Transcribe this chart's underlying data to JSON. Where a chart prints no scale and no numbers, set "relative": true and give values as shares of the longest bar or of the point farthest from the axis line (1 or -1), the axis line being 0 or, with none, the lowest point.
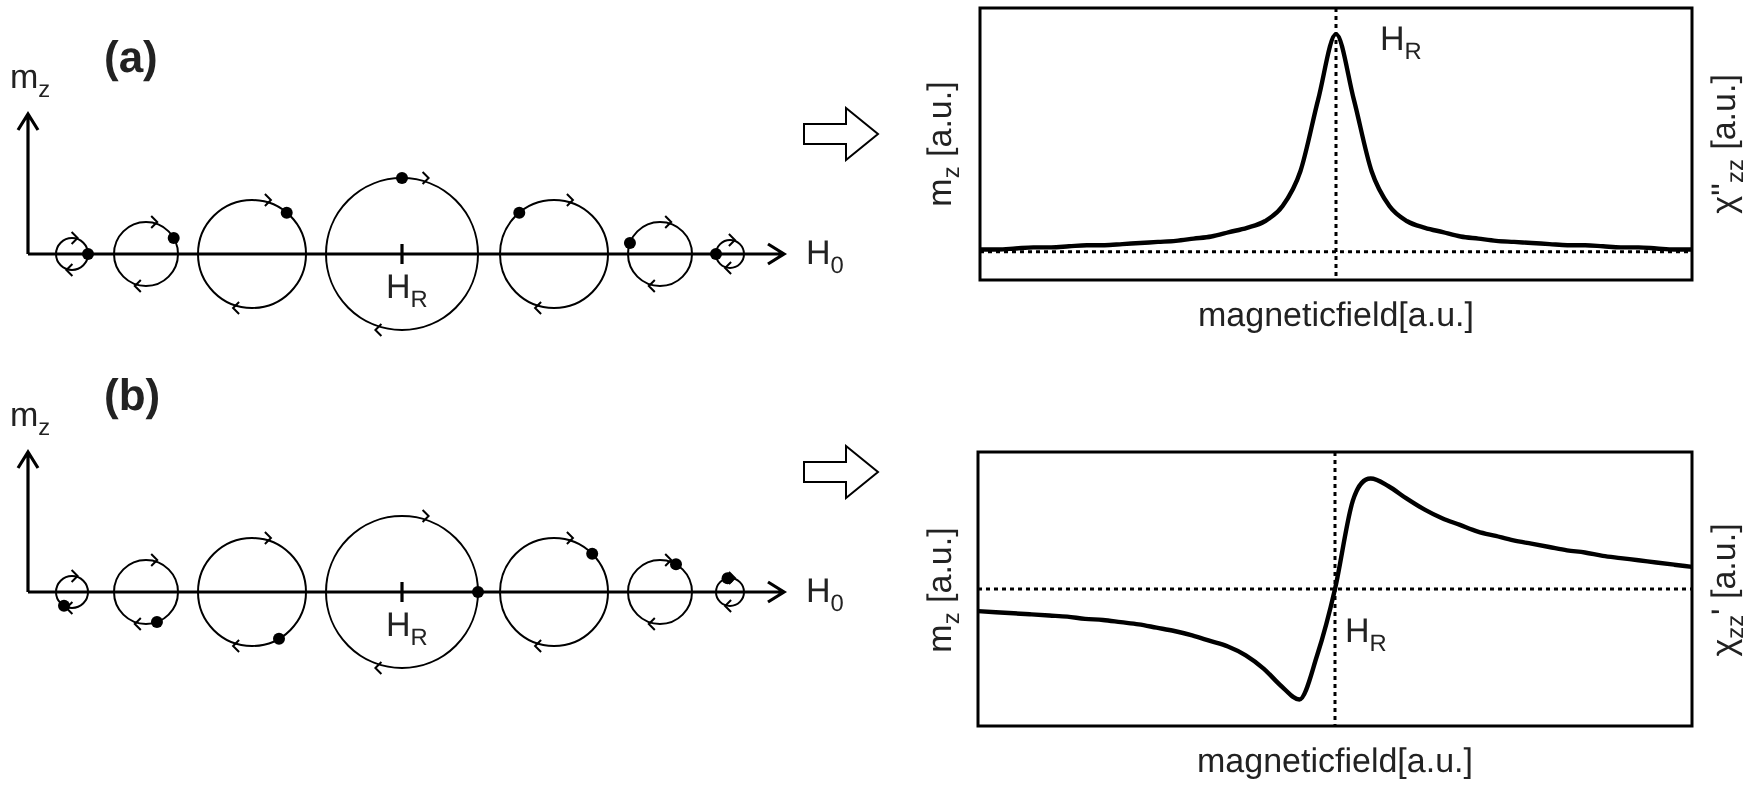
{
  "chart_data": [
    {
      "type": "line",
      "relative": true,
      "xlabel": "magneticfield[a.u.]",
      "ylabel": "m$_{z}$ [a.u.]",
      "y2label": "χ''$_{zz}$ [a.u.]",
      "categories": [
        null,
        null,
        null,
        null,
        null,
        null,
        null,
        null,
        null,
        null,
        null,
        null,
        null,
        null,
        null,
        null,
        null,
        null,
        null,
        null,
        null,
        null,
        null,
        null,
        null,
        null,
        null,
        null,
        null,
        null,
        null,
        null,
        null,
        null,
        null,
        null,
        null,
        null,
        null,
        null,
        null
      ],
      "series": [
        {
          "color": "#000000",
          "values": [
            0.01,
            0.01,
            0.015,
            0.02,
            0.02,
            0.025,
            0.03,
            0.03,
            0.035,
            0.04,
            0.045,
            0.05,
            0.06,
            0.07,
            0.09,
            0.11,
            0.14,
            0.21,
            0.37,
            0.7,
            1,
            0.7,
            0.37,
            0.21,
            0.14,
            0.11,
            0.09,
            0.07,
            0.06,
            0.05,
            0.045,
            0.04,
            0.035,
            0.03,
            0.03,
            0.025,
            0.02,
            0.02,
            0.015,
            0.01,
            0.01
          ]
        }
      ],
      "annotations": [
        "(a)",
        "m$_{z}$",
        "H$_{0}$",
        "H$_{R}$",
        "H$_{R}$"
      ],
      "legend": false,
      "marker": "none",
      "line_style": "solid"
    },
    {
      "type": "line",
      "relative": true,
      "xlabel": "magneticfield[a.u.]",
      "ylabel": "m$_{z}$ [a.u.]",
      "y2label": "χ$_{zz}$' [a.u.]",
      "categories": [
        null,
        null,
        null,
        null,
        null,
        null,
        null,
        null,
        null,
        null,
        null,
        null,
        null,
        null,
        null,
        null,
        null,
        null,
        null,
        null,
        null,
        null,
        null,
        null,
        null,
        null,
        null,
        null,
        null,
        null,
        null,
        null,
        null,
        null,
        null,
        null,
        null,
        null,
        null,
        null,
        null
      ],
      "series": [
        {
          "color": "#000000",
          "values": [
            -0.2,
            -0.21,
            -0.22,
            -0.23,
            -0.24,
            -0.25,
            -0.27,
            -0.28,
            -0.3,
            -0.32,
            -0.35,
            -0.38,
            -0.42,
            -0.47,
            -0.52,
            -0.6,
            -0.72,
            -0.88,
            -1,
            -0.6,
            0,
            0.8,
            1,
            0.93,
            0.82,
            0.72,
            0.64,
            0.58,
            0.52,
            0.48,
            0.44,
            0.41,
            0.38,
            0.35,
            0.33,
            0.3,
            0.28,
            0.26,
            0.24,
            0.22,
            0.2
          ]
        }
      ],
      "annotations": [
        "(b)",
        "m$_{z}$",
        "H$_{0}$",
        "H$_{R}$",
        "H$_{R}$"
      ],
      "legend": false,
      "marker": "none",
      "line_style": "solid"
    }
  ]
}
